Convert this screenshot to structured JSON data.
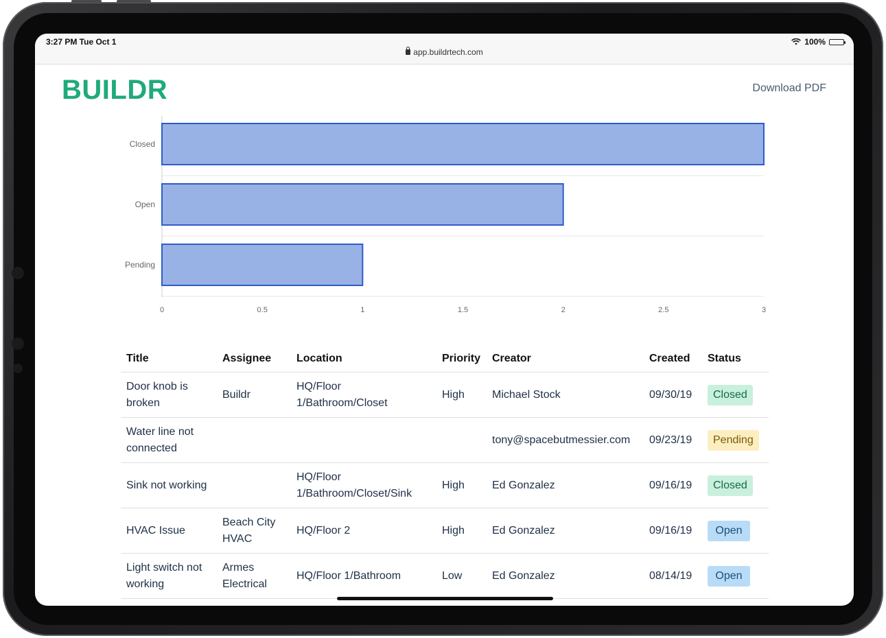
{
  "status_bar": {
    "time": "3:27 PM   Tue Oct 1",
    "url": "app.buildrtech.com",
    "battery": "100%"
  },
  "header": {
    "logo": "BUILDR",
    "download_label": "Download PDF"
  },
  "chart_data": {
    "type": "bar",
    "orientation": "horizontal",
    "categories": [
      "Closed",
      "Open",
      "Pending"
    ],
    "values": [
      3,
      2,
      1
    ],
    "xlim": [
      0,
      3
    ],
    "xticks": [
      "0",
      "0.5",
      "1",
      "1.5",
      "2",
      "2.5",
      "3"
    ],
    "bar_fill": "#98b2e6",
    "bar_stroke": "#2f5cc9",
    "grid": true
  },
  "table": {
    "headers": [
      "Title",
      "Assignee",
      "Location",
      "Priority",
      "Creator",
      "Created",
      "Status"
    ],
    "rows": [
      {
        "title": "Door knob is broken",
        "assignee": "Buildr",
        "location": "HQ/Floor 1/Bathroom/Closet",
        "priority": "High",
        "creator": "Michael Stock",
        "created": "09/30/19",
        "status": "Closed"
      },
      {
        "title": "Water line not connected",
        "assignee": "",
        "location": "",
        "priority": "",
        "creator": "tony@spacebutmessier.com",
        "created": "09/23/19",
        "status": "Pending"
      },
      {
        "title": "Sink not working",
        "assignee": "",
        "location": "HQ/Floor 1/Bathroom/Closet/Sink",
        "priority": "High",
        "creator": "Ed Gonzalez",
        "created": "09/16/19",
        "status": "Closed"
      },
      {
        "title": "HVAC Issue",
        "assignee": "Beach City HVAC",
        "location": "HQ/Floor 2",
        "priority": "High",
        "creator": "Ed Gonzalez",
        "created": "09/16/19",
        "status": "Open"
      },
      {
        "title": "Light switch not working",
        "assignee": "Armes Electrical",
        "location": "HQ/Floor 1/Bathroom",
        "priority": "Low",
        "creator": "Ed Gonzalez",
        "created": "08/14/19",
        "status": "Open"
      }
    ]
  },
  "colors": {
    "brand": "#1faa7b",
    "status_closed": "#c8f0dc",
    "status_pending": "#fdeec0",
    "status_open": "#b8dcf7"
  }
}
